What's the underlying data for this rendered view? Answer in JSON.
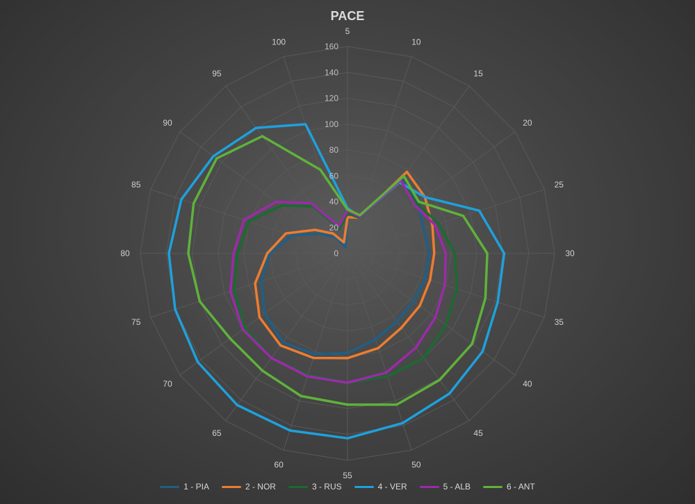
{
  "chart_data": {
    "type": "radar",
    "title": "PACE",
    "categories": [
      "5",
      "10",
      "15",
      "20",
      "25",
      "30",
      "35",
      "40",
      "45",
      "50",
      "55",
      "60",
      "65",
      "70",
      "75",
      "80",
      "85",
      "90",
      "95",
      "100"
    ],
    "radial_axis": {
      "min": 0,
      "max": 160,
      "step": 20,
      "ticks": [
        "0",
        "20",
        "40",
        "60",
        "80",
        "100",
        "120",
        "140",
        "160"
      ]
    },
    "grid": true,
    "legend_position": "bottom",
    "series": [
      {
        "name": "1 - PIA",
        "color": "#1f5f86",
        "values": [
          32,
          29,
          71,
          67,
          62,
          63,
          63,
          63,
          65,
          70,
          77,
          82,
          85,
          79,
          70,
          60,
          45,
          26,
          15,
          5
        ]
      },
      {
        "name": "2 - NOR",
        "color": "#ed7d31",
        "values": [
          28,
          29,
          78,
          74,
          69,
          67,
          67,
          69,
          71,
          77,
          81,
          85,
          88,
          84,
          75,
          62,
          50,
          31,
          19,
          9
        ]
      },
      {
        "name": "3 - RUS",
        "color": "#1a6b30",
        "values": [
          31,
          29,
          70,
          66,
          74,
          83,
          89,
          94,
          100,
          100,
          100,
          99,
          100,
          98,
          92,
          85,
          80,
          63,
          45,
          20
        ]
      },
      {
        "name": "4 - VER",
        "color": "#1ea1dc",
        "values": [
          35,
          30,
          68,
          74,
          107,
          121,
          122,
          129,
          134,
          138,
          143,
          144,
          145,
          143,
          140,
          138,
          135,
          128,
          120,
          105
        ]
      },
      {
        "name": "5 - ALB",
        "color": "#9b2ba8",
        "values": [
          33,
          30,
          70,
          64,
          71,
          76,
          79,
          84,
          90,
          97,
          100,
          100,
          100,
          100,
          95,
          88,
          84,
          68,
          48,
          22
        ]
      },
      {
        "name": "6 - ANT",
        "color": "#5fb23a",
        "values": [
          34,
          31,
          74,
          68,
          94,
          108,
          112,
          119,
          121,
          123,
          117,
          116,
          112,
          112,
          120,
          123,
          125,
          125,
          112,
          68
        ]
      }
    ]
  }
}
